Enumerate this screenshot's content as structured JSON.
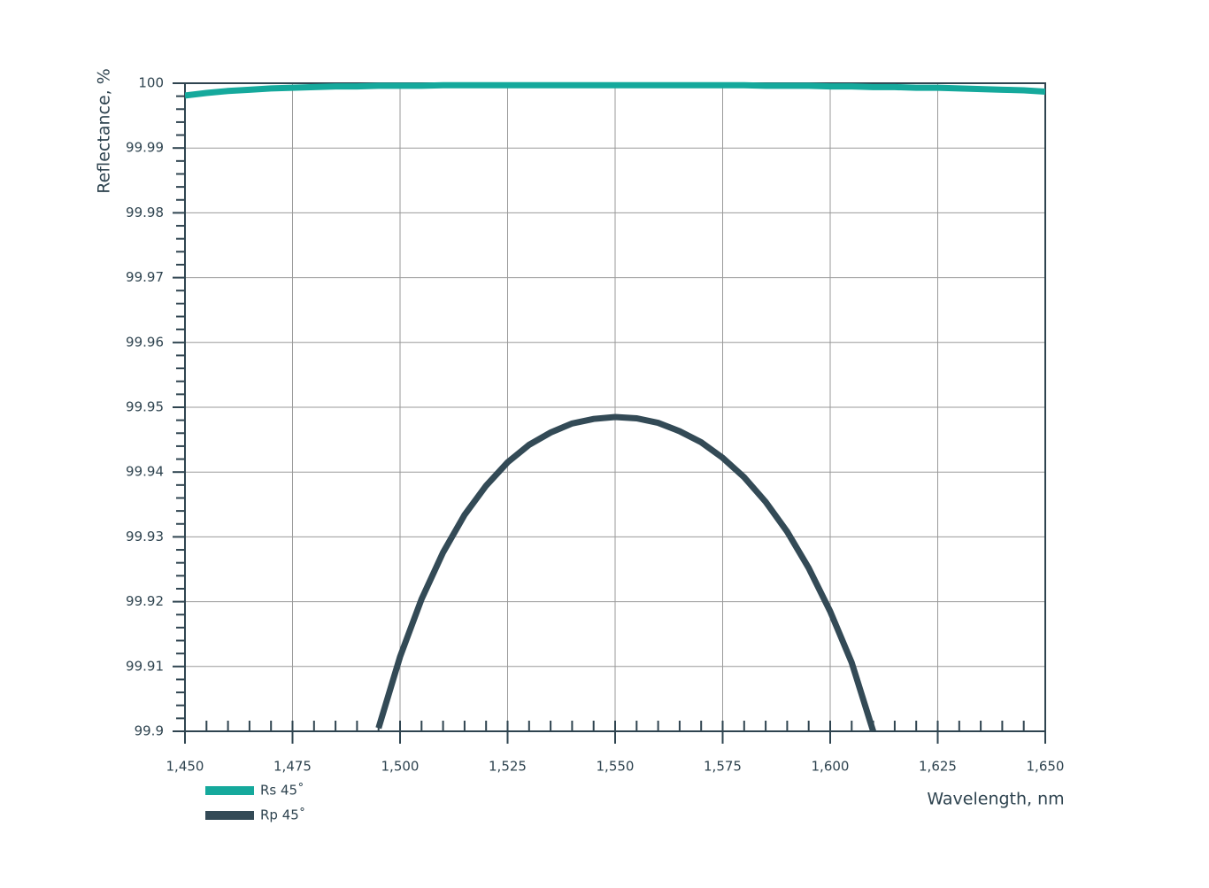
{
  "chart_data": {
    "type": "line",
    "x_label": "Wavelength, nm",
    "y_label": "Reflectance, %",
    "x": [
      1450,
      1455,
      1460,
      1465,
      1470,
      1475,
      1480,
      1485,
      1490,
      1495,
      1500,
      1505,
      1510,
      1515,
      1520,
      1525,
      1530,
      1535,
      1540,
      1545,
      1550,
      1555,
      1560,
      1565,
      1570,
      1575,
      1580,
      1585,
      1590,
      1595,
      1600,
      1605,
      1610,
      1615,
      1620,
      1625,
      1630,
      1635,
      1640,
      1645,
      1650
    ],
    "series": [
      {
        "name": "Rs 45˚",
        "color": "#15a99c",
        "values": [
          99.9981,
          99.9985,
          99.9988,
          99.999,
          99.9992,
          99.9993,
          99.9994,
          99.9995,
          99.9995,
          99.9996,
          99.9996,
          99.9996,
          99.9997,
          99.9997,
          99.9997,
          99.9997,
          99.9997,
          99.9997,
          99.9997,
          99.9997,
          99.9997,
          99.9997,
          99.9997,
          99.9997,
          99.9997,
          99.9997,
          99.9997,
          99.9996,
          99.9996,
          99.9996,
          99.9995,
          99.9995,
          99.9994,
          99.9994,
          99.9993,
          99.9993,
          99.9992,
          99.9991,
          99.999,
          99.9989,
          99.9987
        ]
      },
      {
        "name": "Rp 45˚",
        "color": "#334a56",
        "values": [
          null,
          null,
          null,
          null,
          null,
          null,
          null,
          null,
          null,
          99.9005,
          99.9115,
          99.9204,
          99.9276,
          99.9334,
          99.9379,
          99.9415,
          99.9442,
          99.9461,
          99.9475,
          99.9482,
          99.9485,
          99.9483,
          99.9476,
          99.9463,
          99.9446,
          99.9422,
          99.9392,
          99.9354,
          99.9308,
          99.9252,
          99.9185,
          99.9106,
          99.9,
          null,
          null,
          null,
          null,
          null,
          null,
          null,
          null
        ]
      }
    ],
    "xlim": [
      1450,
      1650
    ],
    "xticks": [
      {
        "value": 1450,
        "label": "1,450"
      },
      {
        "value": 1475,
        "label": "1,475"
      },
      {
        "value": 1500,
        "label": "1,500"
      },
      {
        "value": 1525,
        "label": "1,525"
      },
      {
        "value": 1550,
        "label": "1,550"
      },
      {
        "value": 1575,
        "label": "1,575"
      },
      {
        "value": 1600,
        "label": "1,600"
      },
      {
        "value": 1625,
        "label": "1,625"
      },
      {
        "value": 1650,
        "label": "1,650"
      }
    ],
    "ylim": [
      99.9,
      100
    ],
    "yticks": [
      99.9,
      99.91,
      99.92,
      99.93,
      99.94,
      99.95,
      99.96,
      99.97,
      99.98,
      99.99,
      100
    ],
    "minor_divisions": 5,
    "grid": true
  }
}
